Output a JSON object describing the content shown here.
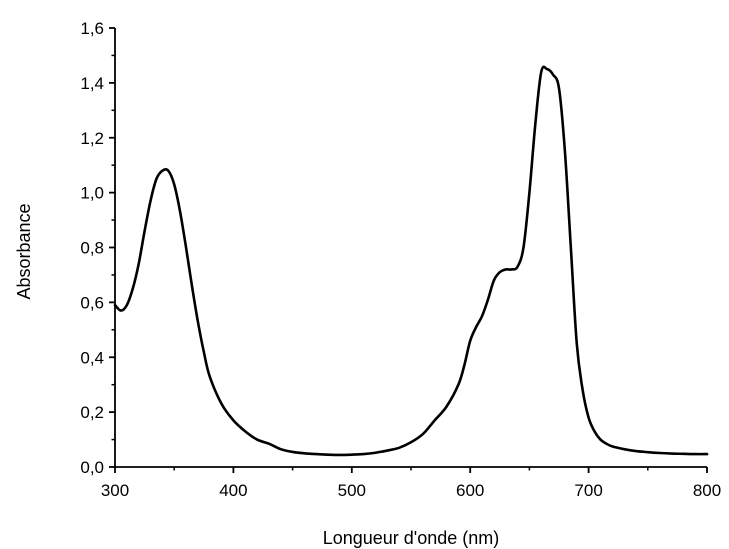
{
  "chart_data": {
    "type": "line",
    "title": "",
    "xlabel": "Longueur d'onde (nm)",
    "ylabel": "Absorbance",
    "xlim": [
      300,
      800
    ],
    "ylim": [
      0.0,
      1.6
    ],
    "x_ticks": [
      300,
      400,
      500,
      600,
      700,
      800
    ],
    "x_tick_labels": [
      "300",
      "400",
      "500",
      "600",
      "700",
      "800"
    ],
    "y_ticks": [
      0.0,
      0.2,
      0.4,
      0.6,
      0.8,
      1.0,
      1.2,
      1.4,
      1.6
    ],
    "y_tick_labels": [
      "0,0",
      "0,2",
      "0,4",
      "0,6",
      "0,8",
      "1,0",
      "1,2",
      "1,4",
      "1,6"
    ],
    "grid": false,
    "legend": "none",
    "line_color": "#000000",
    "series": [
      {
        "x": [
          300,
          305,
          310,
          315,
          320,
          325,
          330,
          335,
          340,
          345,
          350,
          355,
          360,
          365,
          370,
          375,
          380,
          390,
          400,
          410,
          420,
          430,
          440,
          450,
          460,
          470,
          480,
          490,
          500,
          510,
          520,
          530,
          540,
          550,
          560,
          570,
          580,
          590,
          595,
          600,
          605,
          610,
          615,
          620,
          625,
          630,
          635,
          640,
          645,
          650,
          655,
          660,
          665,
          670,
          675,
          680,
          685,
          690,
          695,
          700,
          705,
          710,
          715,
          720,
          730,
          740,
          750,
          760,
          770,
          780,
          790,
          800
        ],
        "y": [
          0.59,
          0.57,
          0.59,
          0.65,
          0.74,
          0.86,
          0.97,
          1.05,
          1.08,
          1.08,
          1.03,
          0.93,
          0.8,
          0.66,
          0.53,
          0.42,
          0.33,
          0.23,
          0.17,
          0.13,
          0.1,
          0.085,
          0.065,
          0.055,
          0.05,
          0.047,
          0.045,
          0.044,
          0.045,
          0.047,
          0.052,
          0.06,
          0.07,
          0.09,
          0.12,
          0.17,
          0.22,
          0.3,
          0.37,
          0.46,
          0.51,
          0.55,
          0.61,
          0.68,
          0.71,
          0.72,
          0.72,
          0.73,
          0.8,
          1.0,
          1.25,
          1.44,
          1.45,
          1.43,
          1.38,
          1.15,
          0.8,
          0.45,
          0.28,
          0.18,
          0.13,
          0.1,
          0.085,
          0.075,
          0.065,
          0.058,
          0.054,
          0.051,
          0.049,
          0.048,
          0.047,
          0.047
        ]
      }
    ]
  }
}
